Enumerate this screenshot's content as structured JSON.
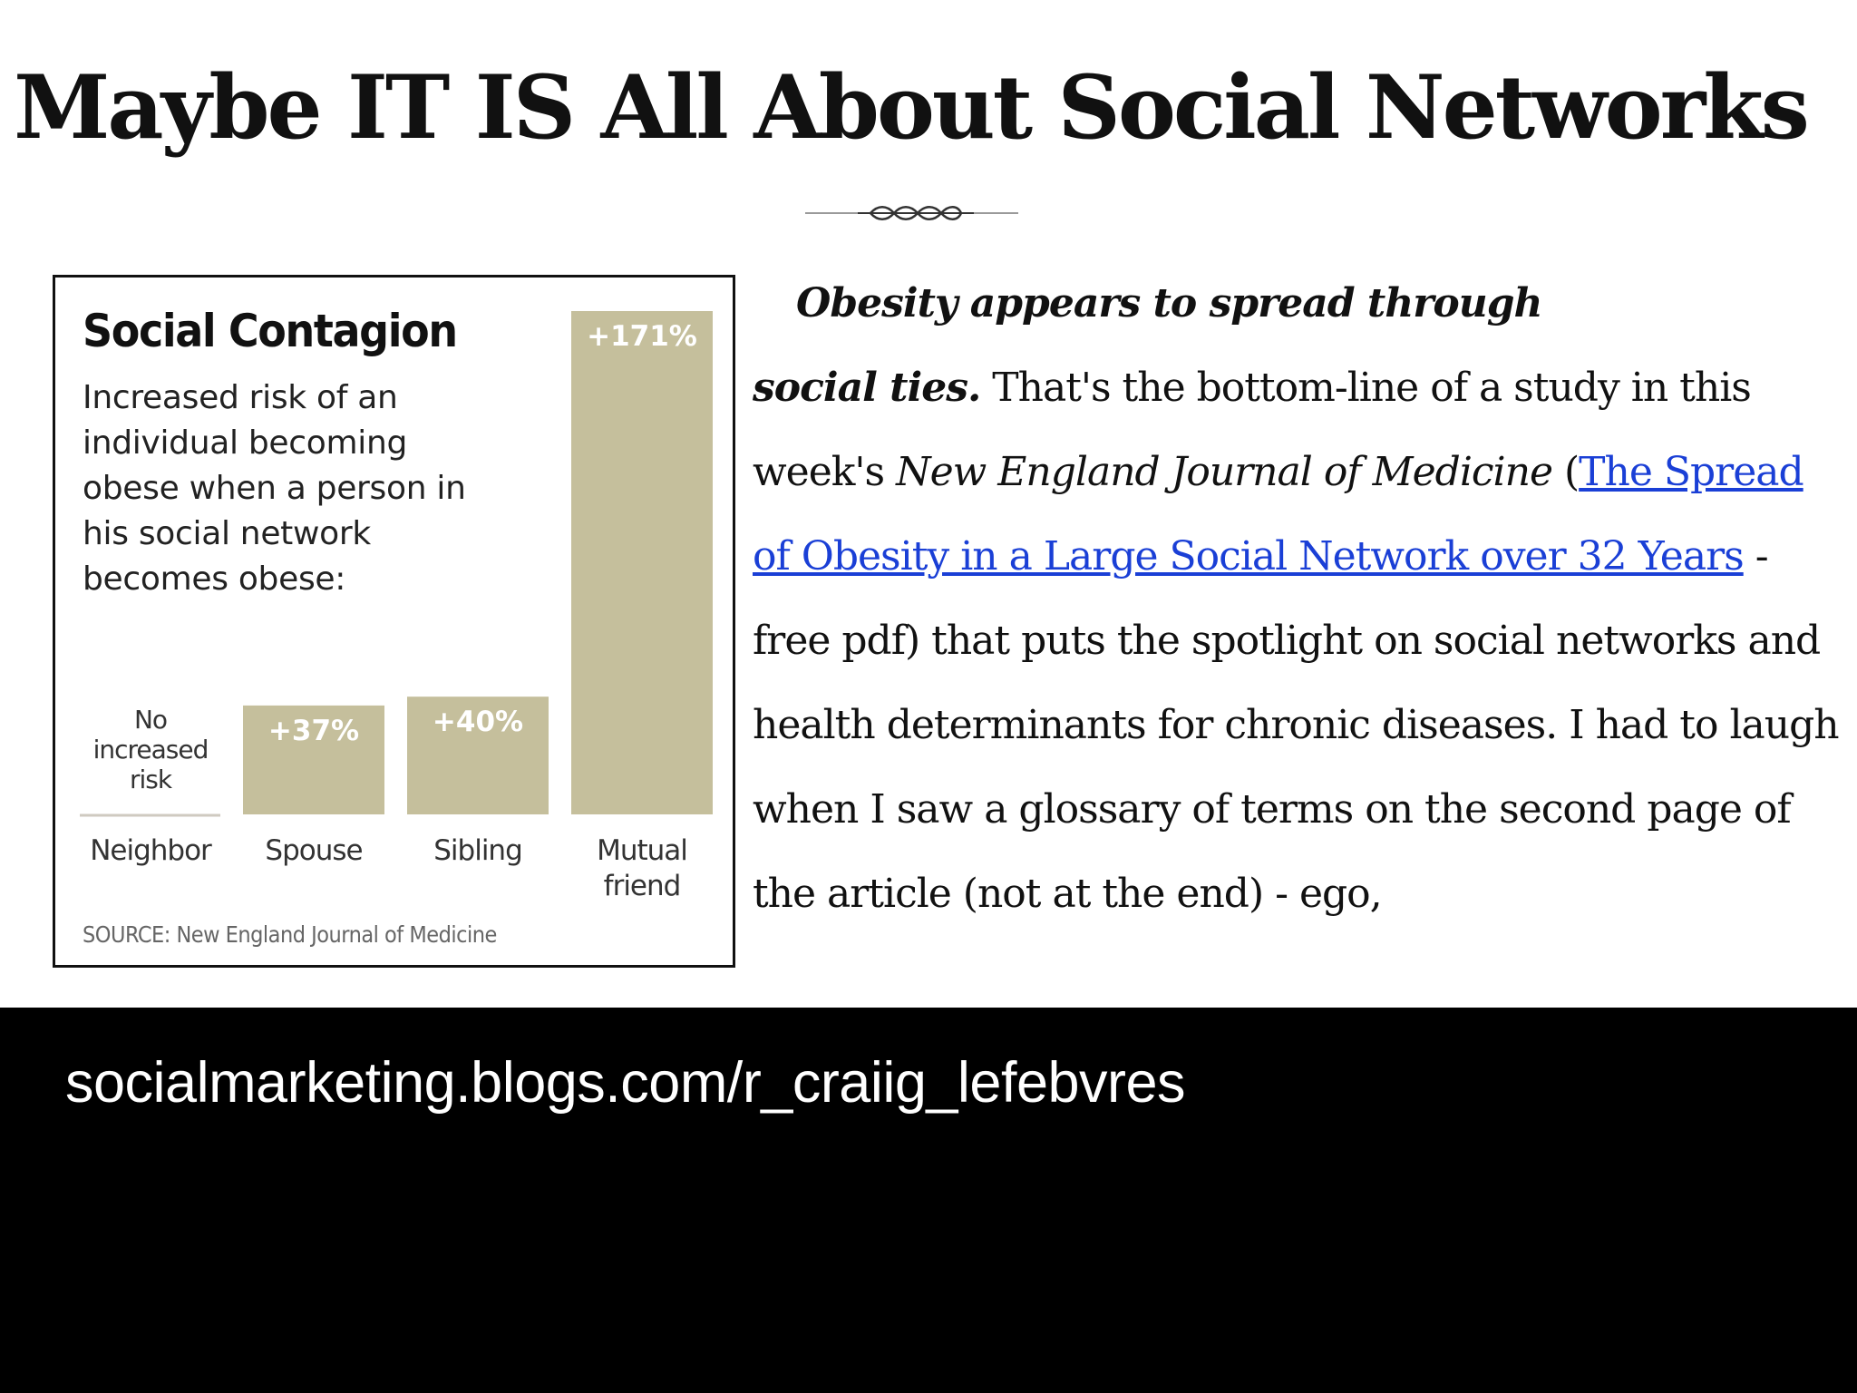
{
  "slide": {
    "title": "Maybe IT IS All About Social Networks"
  },
  "chart": {
    "title": "Social Contagion",
    "subtitle": "Increased risk of an individual becoming obese when a person in his social network becomes obese:",
    "source": "SOURCE: New England Journal of Medicine",
    "bar_color": "#c5bf9c",
    "label_color_on_bar": "#ffffff"
  },
  "chart_data": {
    "type": "bar",
    "title": "Social Contagion",
    "subtitle": "Increased risk of an individual becoming obese when a person in his social network becomes obese:",
    "categories": [
      "Neighbor",
      "Spouse",
      "Sibling",
      "Mutual friend"
    ],
    "values": [
      0,
      37,
      40,
      171
    ],
    "data_labels": [
      "No increased risk",
      "+37%",
      "+40%",
      "+171%"
    ],
    "ylabel": "",
    "ylim": [
      0,
      171
    ],
    "grid": false,
    "source": "SOURCE: New England Journal of Medicine"
  },
  "article": {
    "lead_line1": "Obesity appears to spread through",
    "lead_line2": "social ties.",
    "text1": " That's the bottom-line of a study in this week's ",
    "journal": "New England Journal of Medicine",
    "text2": " (",
    "link": "The Spread of Obesity in a Large Social Network over 32 Years",
    "text3": " - free pdf) that puts the spotlight on social networks and health determinants for chronic diseases. I had to laugh when I saw a glossary of terms on the second page of the article (not at the end) - ego,",
    "link_color": "#1a3fd6"
  },
  "footer": {
    "url": "socialmarketing.blogs.com/r_craiig_lefebvres"
  }
}
